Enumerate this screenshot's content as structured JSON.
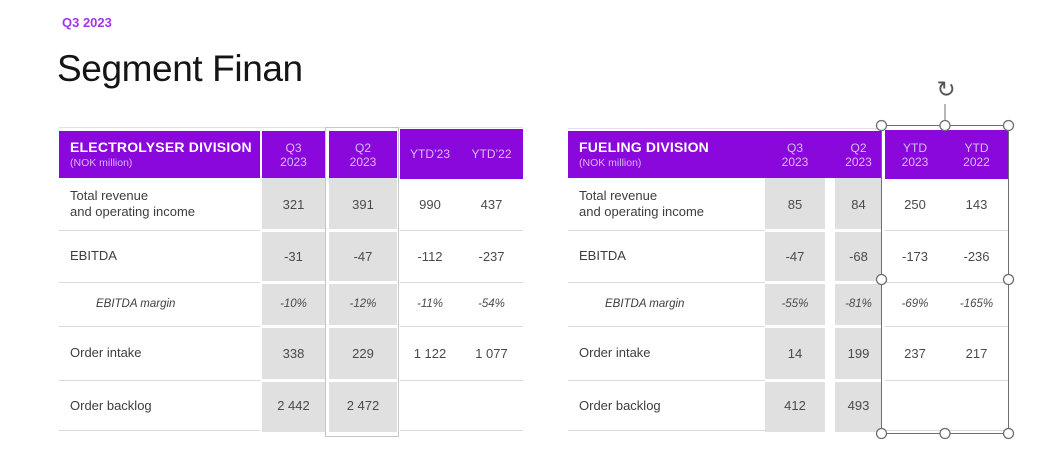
{
  "slide": {
    "eyebrow": "Q3 2023",
    "title": "Segment Finan"
  },
  "tables": [
    {
      "id": "electrolyser",
      "division": "ELECTROLYSER DIVISION",
      "unit": "(NOK million)",
      "columns": [
        [
          "Q3",
          "2023"
        ],
        [
          "Q2",
          "2023"
        ],
        [
          "YTD’23"
        ],
        [
          "YTD’22"
        ]
      ],
      "rows": [
        {
          "label": [
            "Total revenue",
            "and operating income"
          ],
          "italic": false,
          "values": [
            "321",
            "391",
            "990",
            "437"
          ]
        },
        {
          "label": [
            "EBITDA"
          ],
          "italic": false,
          "values": [
            "-31",
            "-47",
            "-112",
            "-237"
          ]
        },
        {
          "label": [
            "EBITDA margin"
          ],
          "italic": true,
          "values": [
            "-10%",
            "-12%",
            "-11%",
            "-54%"
          ]
        },
        {
          "label": [
            "Order intake"
          ],
          "italic": false,
          "values": [
            "338",
            "229",
            "1 122",
            "1 077"
          ]
        },
        {
          "label": [
            "Order backlog"
          ],
          "italic": false,
          "values": [
            "2 442",
            "2 472",
            "",
            ""
          ]
        }
      ]
    },
    {
      "id": "fueling",
      "division": "FUELING DIVISION",
      "unit": "(NOK million)",
      "columns": [
        [
          "Q3",
          "2023"
        ],
        [
          "Q2",
          "2023"
        ],
        [
          "YTD",
          "2023"
        ],
        [
          "YTD",
          "2022"
        ]
      ],
      "rows": [
        {
          "label": [
            "Total revenue",
            "and operating income"
          ],
          "italic": false,
          "values": [
            "85",
            "84",
            "250",
            "143"
          ]
        },
        {
          "label": [
            "EBITDA"
          ],
          "italic": false,
          "values": [
            "-47",
            "-68",
            "-173",
            "-236"
          ]
        },
        {
          "label": [
            "EBITDA margin"
          ],
          "italic": true,
          "values": [
            "-55%",
            "-81%",
            "-69%",
            "-165%"
          ]
        },
        {
          "label": [
            "Order intake"
          ],
          "italic": false,
          "values": [
            "14",
            "199",
            "237",
            "217"
          ]
        },
        {
          "label": [
            "Order backlog"
          ],
          "italic": false,
          "values": [
            "412",
            "493",
            "",
            ""
          ]
        }
      ]
    }
  ],
  "selection": {
    "rotate_glyph": "↻",
    "handle_names": [
      "top-left",
      "top-center",
      "top-right",
      "middle-left",
      "middle-right",
      "bottom-left",
      "bottom-center",
      "bottom-right"
    ]
  },
  "colors": {
    "accent_purple": "#8a08dc",
    "eyebrow_purple": "#a234f0",
    "highlight_gray": "#e0e0e0",
    "selection_stroke": "#6f6f6f"
  }
}
